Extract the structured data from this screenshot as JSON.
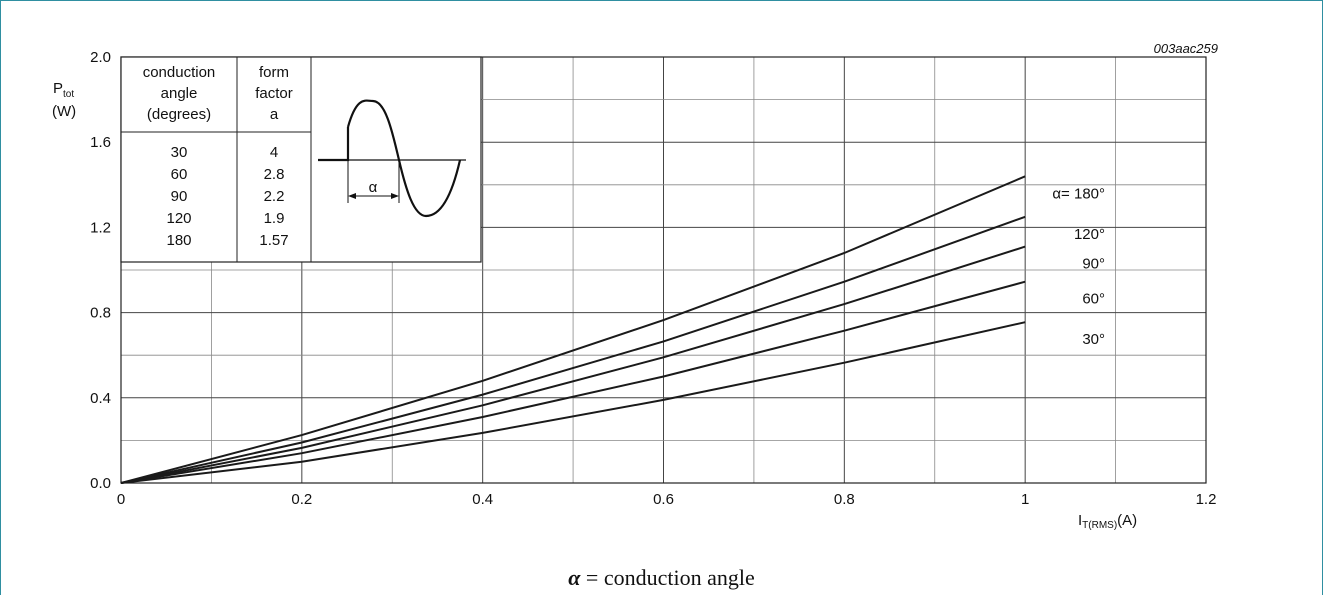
{
  "figure_code": "003aac259",
  "caption": {
    "symbol": "α",
    "text": "= conduction angle"
  },
  "inset_table": {
    "headers": [
      [
        "conduction",
        "angle",
        "(degrees)"
      ],
      [
        "form",
        "factor",
        "a"
      ]
    ],
    "rows": [
      [
        "30",
        "4"
      ],
      [
        "60",
        "2.8"
      ],
      [
        "90",
        "2.2"
      ],
      [
        "120",
        "1.9"
      ],
      [
        "180",
        "1.57"
      ]
    ]
  },
  "waveform": {
    "label": "α"
  },
  "chart_data": {
    "type": "line",
    "xlabel": {
      "main": "I",
      "sub": "T(RMS)",
      "unit": "(A)"
    },
    "ylabel": {
      "main": "P",
      "sub": "tot",
      "unit": "(W)"
    },
    "xlim": [
      0,
      1.2
    ],
    "ylim": [
      0,
      2.0
    ],
    "xticks": [
      0,
      0.2,
      0.4,
      0.6,
      0.8,
      1,
      1.2
    ],
    "xtick_labels": [
      "0",
      "0.2",
      "0.4",
      "0.6",
      "0.8",
      "1",
      "1.2"
    ],
    "yticks": [
      0,
      0.4,
      0.8,
      1.2,
      1.6,
      2.0
    ],
    "ytick_labels": [
      "0.0",
      "0.4",
      "0.8",
      "1.2",
      "1.6",
      "2.0"
    ],
    "grid": true,
    "series": [
      {
        "name": "α= 180°",
        "x": [
          0,
          0.2,
          0.4,
          0.6,
          0.8,
          1.0
        ],
        "y": [
          0,
          0.225,
          0.48,
          0.765,
          1.08,
          1.44
        ]
      },
      {
        "name": "120°",
        "x": [
          0,
          0.2,
          0.4,
          0.6,
          0.8,
          1.0
        ],
        "y": [
          0,
          0.19,
          0.415,
          0.665,
          0.945,
          1.25
        ]
      },
      {
        "name": "90°",
        "x": [
          0,
          0.2,
          0.4,
          0.6,
          0.8,
          1.0
        ],
        "y": [
          0,
          0.165,
          0.365,
          0.59,
          0.84,
          1.11
        ]
      },
      {
        "name": "60°",
        "x": [
          0,
          0.2,
          0.4,
          0.6,
          0.8,
          1.0
        ],
        "y": [
          0,
          0.14,
          0.31,
          0.5,
          0.715,
          0.945
        ]
      },
      {
        "name": "30°",
        "x": [
          0,
          0.2,
          0.4,
          0.6,
          0.8,
          1.0
        ],
        "y": [
          0,
          0.1,
          0.235,
          0.39,
          0.565,
          0.755
        ]
      }
    ]
  }
}
